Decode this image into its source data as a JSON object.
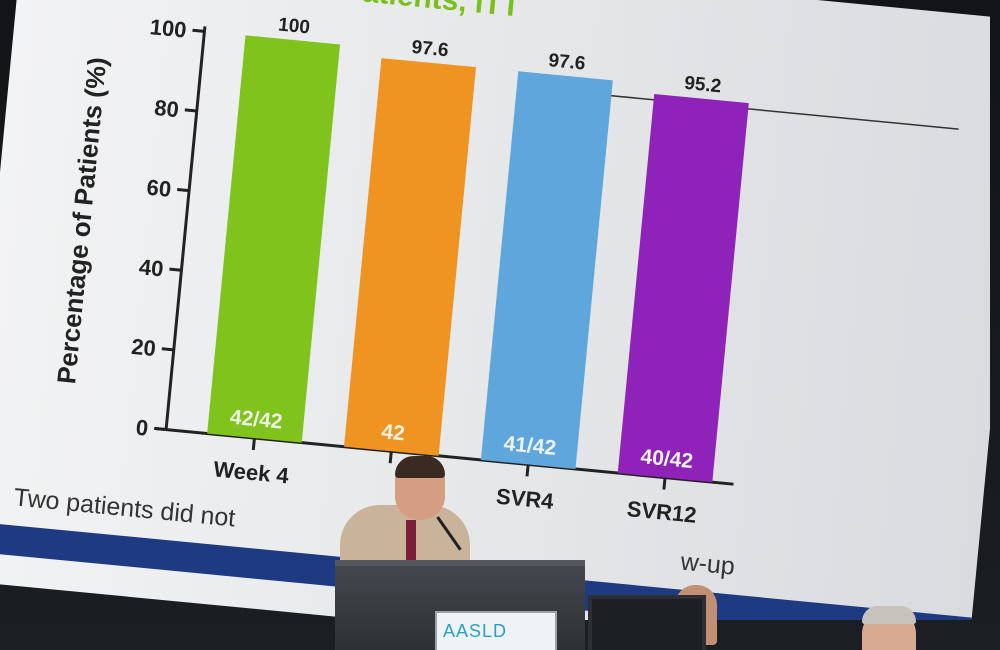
{
  "slide": {
    "title": "eatment-Naïve Patients, ITT",
    "ylabel": "Percentage of Patients (%)",
    "footnote_left": "Two patients did not",
    "footnote_right": "w-up"
  },
  "colors": {
    "week4": "#7fc31c",
    "orange": "#ef9421",
    "svr4": "#5fa6dc",
    "svr12": "#8f22b8",
    "slide_bg": "#ecedef",
    "band": "#1d3a82"
  },
  "chart_data": {
    "type": "bar",
    "ylim": [
      0,
      100
    ],
    "yticks": [
      "0",
      "20",
      "40",
      "60",
      "80",
      "100"
    ],
    "categories": [
      "Week 4",
      "",
      "SVR4",
      "SVR12"
    ],
    "values": [
      100,
      97.6,
      97.6,
      95.2
    ],
    "value_labels": [
      "100",
      "97.6",
      "97.6",
      "95.2"
    ],
    "in_bar_labels": [
      "42/42",
      "42",
      "41/42",
      "40/42"
    ]
  },
  "podium": {
    "sign_text": "AASLD"
  }
}
